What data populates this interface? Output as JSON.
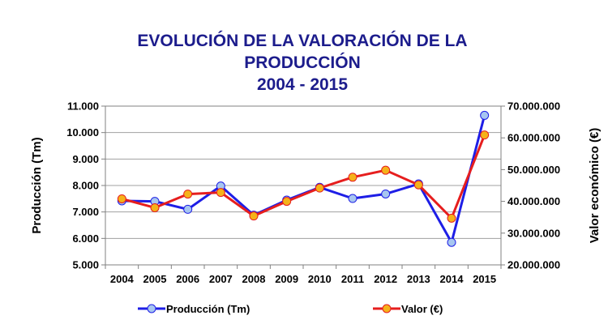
{
  "chart_data": {
    "type": "line",
    "title_lines": [
      "EVOLUCIÓN DE LA VALORACIÓN DE LA",
      "PRODUCCIÓN",
      "2004 - 2015"
    ],
    "categories": [
      "2004",
      "2005",
      "2006",
      "2007",
      "2008",
      "2009",
      "2010",
      "2011",
      "2012",
      "2013",
      "2014",
      "2015"
    ],
    "ylabel": "Producción (Tm)",
    "y2label": "Valor económico (€)",
    "ylim": [
      5000,
      11000
    ],
    "yticks": [
      5000,
      6000,
      7000,
      8000,
      9000,
      10000,
      11000
    ],
    "ytick_labels": [
      "5.000",
      "6.000",
      "7.000",
      "8.000",
      "9.000",
      "10.000",
      "11.000"
    ],
    "y2lim": [
      20000000,
      70000000
    ],
    "y2ticks": [
      20000000,
      30000000,
      40000000,
      50000000,
      60000000,
      70000000
    ],
    "y2tick_labels": [
      "20.000.000",
      "30.000.000",
      "40.000.000",
      "50.000.000",
      "60.000.000",
      "70.000.000"
    ],
    "grid": "horizontal",
    "legend_position": "bottom",
    "series": [
      {
        "name": "Producción (Tm)",
        "axis": "left",
        "line_color": "#1e1ee6",
        "marker_color": "#a7c6f0",
        "values": [
          7420,
          7400,
          7100,
          7980,
          6880,
          7450,
          7930,
          7510,
          7680,
          8060,
          5850,
          10650
        ]
      },
      {
        "name": "Valor (€)",
        "axis": "right",
        "line_color": "#e61e1e",
        "marker_color": "#f5b21a",
        "values": [
          40800000,
          38000000,
          42300000,
          42800000,
          35400000,
          40000000,
          44200000,
          47600000,
          49800000,
          45200000,
          34700000,
          60900000
        ]
      }
    ]
  }
}
